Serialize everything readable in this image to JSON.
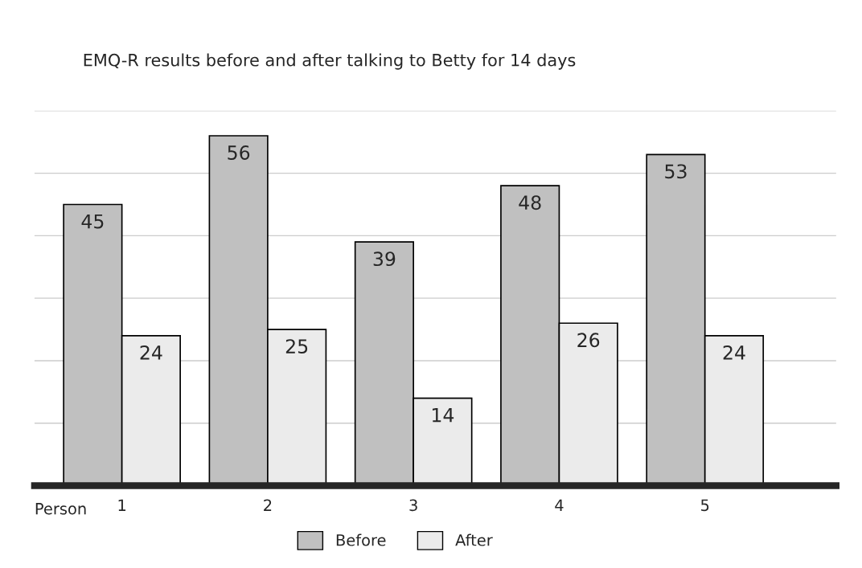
{
  "chart_data": {
    "type": "bar",
    "title": "EMQ-R results before and after talking to Betty for 14 days",
    "xlabel": "Person",
    "categories": [
      "1",
      "2",
      "3",
      "4",
      "5"
    ],
    "series": [
      {
        "name": "Before",
        "color": "#c0c0c0",
        "values": [
          45,
          56,
          39,
          48,
          53
        ]
      },
      {
        "name": "After",
        "color": "#ebebeb",
        "values": [
          24,
          25,
          14,
          26,
          24
        ]
      }
    ],
    "ylim": [
      0,
      60
    ],
    "yticks": [
      {
        "value": 10,
        "label": null
      },
      {
        "value": 20,
        "label": null
      },
      {
        "value": 30,
        "label": null
      },
      {
        "value": 40,
        "label": null
      },
      {
        "value": 50,
        "label": null
      },
      {
        "value": 60,
        "label": null
      }
    ],
    "grid": "y",
    "tick_labels": "x",
    "data_labels": true,
    "legend": "bottom"
  }
}
